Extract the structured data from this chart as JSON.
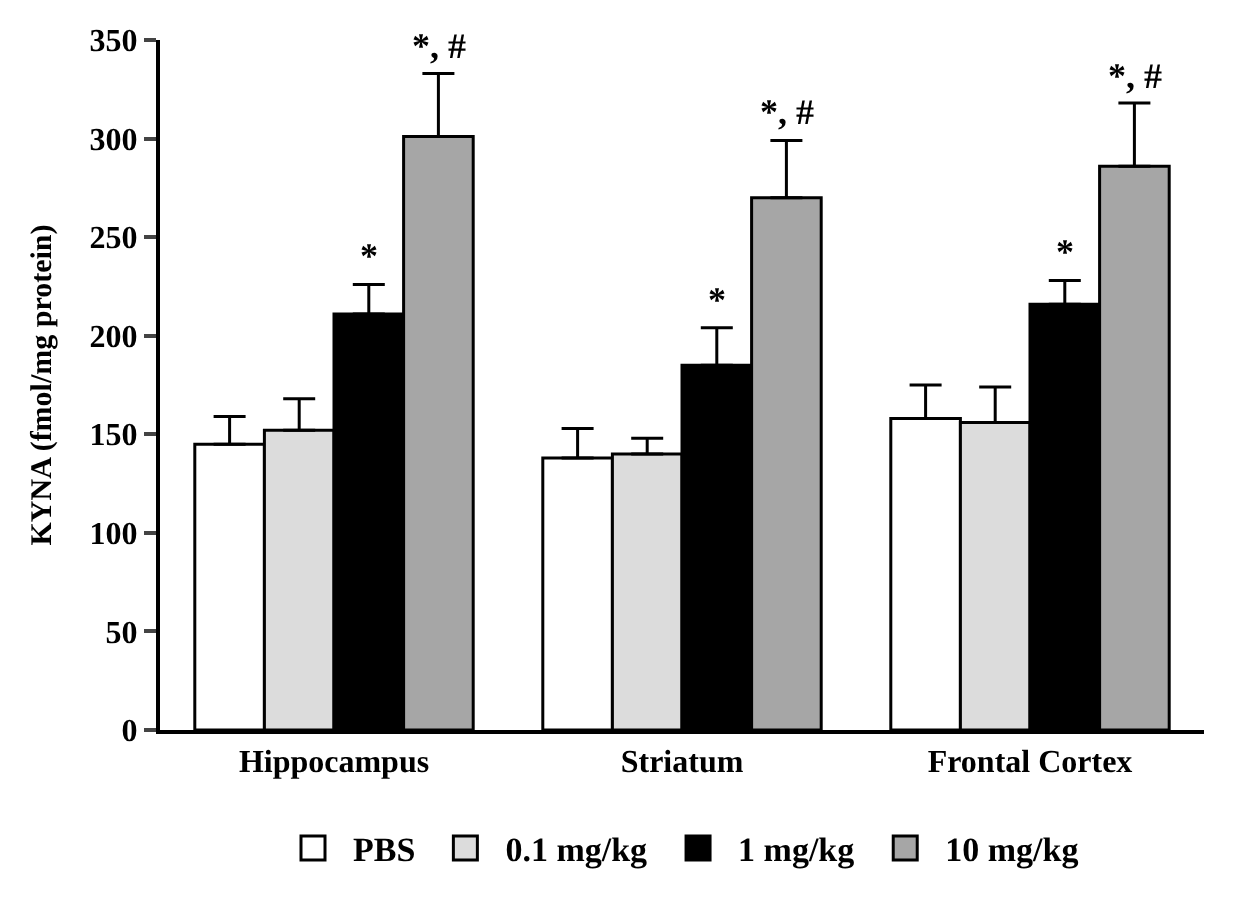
{
  "chart_data": {
    "type": "bar",
    "ylabel": "KYNA (fmol/mg protein)",
    "categories": [
      "Hippocampus",
      "Striatum",
      "Frontal Cortex"
    ],
    "series": [
      {
        "name": "PBS",
        "color": "#ffffff",
        "values": [
          145,
          138,
          158
        ],
        "errors": [
          14,
          15,
          17
        ]
      },
      {
        "name": "0.1 mg/kg",
        "color": "#dcdcdc",
        "values": [
          152,
          140,
          156
        ],
        "errors": [
          16,
          8,
          18
        ]
      },
      {
        "name": "1 mg/kg",
        "color": "#000000",
        "values": [
          211,
          185,
          216
        ],
        "errors": [
          15,
          19,
          12
        ],
        "value_labels": [
          "*",
          "*",
          "*"
        ]
      },
      {
        "name": "10 mg/kg",
        "color": "#a6a6a6",
        "values": [
          301,
          270,
          286
        ],
        "errors": [
          32,
          29,
          32
        ],
        "value_labels": [
          "*, #",
          "*, #",
          "*, #"
        ]
      }
    ],
    "ylim": [
      0,
      350
    ],
    "yticks": [
      0,
      50,
      100,
      150,
      200,
      250,
      300,
      350
    ],
    "legend": "bottom"
  }
}
